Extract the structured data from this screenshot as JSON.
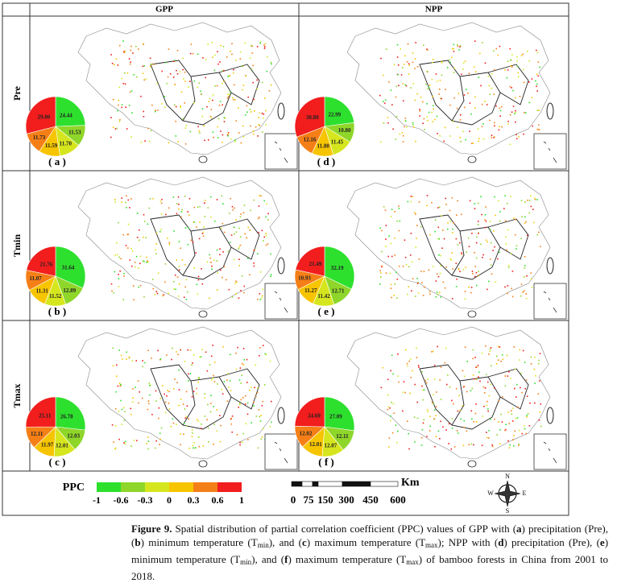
{
  "columns": [
    "GPP",
    "NPP"
  ],
  "rows": [
    "Pre",
    "Tmin",
    "Tmax"
  ],
  "panels": [
    {
      "label": "( a )",
      "values": [
        24.44,
        11.53,
        11.7,
        11.59,
        11.73,
        29.0
      ],
      "value_labels": [
        "24.44",
        "11.53",
        "11.70",
        "11.59",
        "11.73",
        "29.00"
      ]
    },
    {
      "label": "( d )",
      "values": [
        22.99,
        10.8,
        11.45,
        11.8,
        12.16,
        30.8
      ],
      "value_labels": [
        "22.99",
        "10.80",
        "11.45",
        "11.80",
        "12.16",
        "30.80"
      ]
    },
    {
      "label": "( b )",
      "values": [
        31.64,
        12.89,
        11.52,
        11.31,
        11.07,
        21.76
      ],
      "value_labels": [
        "31.64",
        "12.89",
        "11.52",
        "11.31",
        "11.07",
        "21.76"
      ]
    },
    {
      "label": "( e )",
      "values": [
        32.19,
        12.71,
        11.42,
        11.27,
        10.93,
        21.49
      ],
      "value_labels": [
        "32.19",
        "12.71",
        "11.42",
        "11.27",
        "10.93",
        "21.49"
      ]
    },
    {
      "label": "( c )",
      "values": [
        26.78,
        12.03,
        12.01,
        11.97,
        12.11,
        25.11
      ],
      "value_labels": [
        "26.78",
        "12.03",
        "12.01",
        "11.97",
        "12.11",
        "25.11"
      ]
    },
    {
      "label": "( f )",
      "values": [
        27.09,
        12.11,
        12.07,
        12.01,
        12.02,
        24.69
      ],
      "value_labels": [
        "27.09",
        "12.11",
        "12.07",
        "12.01",
        "12.02",
        "24.69"
      ]
    }
  ],
  "legend": {
    "title": "PPC",
    "ticks": [
      -1,
      -0.6,
      -0.3,
      0,
      0.3,
      0.6,
      1
    ],
    "colors": [
      "#2ee02e",
      "#8fd62a",
      "#d6e61e",
      "#f7c400",
      "#f57f17",
      "#f21d1d"
    ]
  },
  "scale_bar": {
    "ticks": [
      0,
      75,
      150,
      300,
      450,
      600
    ],
    "unit": "Km"
  },
  "compass": [
    "N",
    "E",
    "S",
    "W"
  ],
  "caption": [
    {
      "text": "Figure 9.",
      "style": "bold"
    },
    {
      "text": " Spatial distribution of partial correlation coefficient (PPC) values of GPP with (",
      "style": "plain"
    },
    {
      "text": "a",
      "style": "bold"
    },
    {
      "text": ") precipitation (Pre), (",
      "style": "plain"
    },
    {
      "text": "b",
      "style": "bold"
    },
    {
      "text": ") minimum temperature (T",
      "style": "plain"
    },
    {
      "text": "min",
      "style": "sub"
    },
    {
      "text": "), and (",
      "style": "plain"
    },
    {
      "text": "c",
      "style": "bold"
    },
    {
      "text": ") maximum temperature (T",
      "style": "plain"
    },
    {
      "text": "max",
      "style": "sub"
    },
    {
      "text": "); NPP with (",
      "style": "plain"
    },
    {
      "text": "d",
      "style": "bold"
    },
    {
      "text": ") precipitation (Pre), (",
      "style": "plain"
    },
    {
      "text": "e",
      "style": "bold"
    },
    {
      "text": ") minimum temperature (T",
      "style": "plain"
    },
    {
      "text": "min",
      "style": "sub"
    },
    {
      "text": "), and (",
      "style": "plain"
    },
    {
      "text": "f",
      "style": "bold"
    },
    {
      "text": ") maximum temperature (T",
      "style": "plain"
    },
    {
      "text": "max",
      "style": "sub"
    },
    {
      "text": ") of bamboo forests in China from 2001 to 2018.",
      "style": "plain"
    }
  ]
}
